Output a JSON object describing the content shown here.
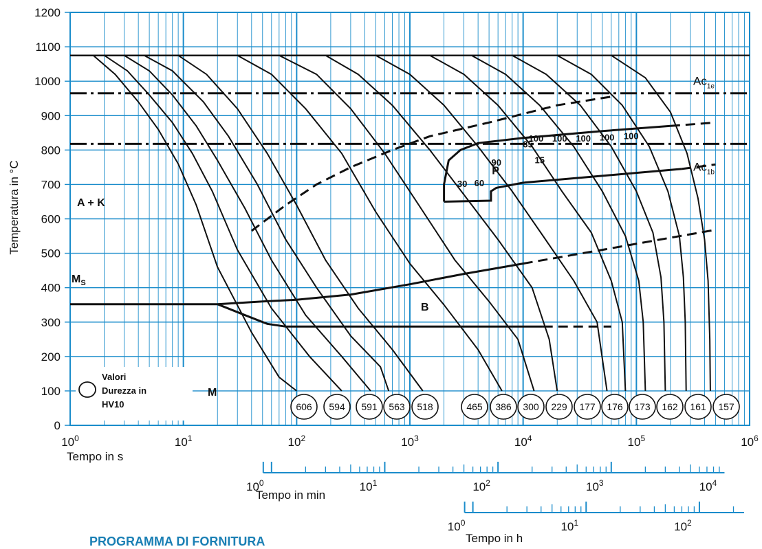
{
  "colors": {
    "grid": "#1a8ccb",
    "curve": "#111111",
    "background": "#ffffff",
    "heading": "#1a7fb4"
  },
  "footer": {
    "heading": "PROGRAMMA DI FORNITURA"
  },
  "chart_data": {
    "type": "line",
    "title": "",
    "ylabel": "Temperatura in °C",
    "ylim": [
      0,
      1200
    ],
    "yticks": [
      "0",
      "100",
      "200",
      "300",
      "400",
      "500",
      "600",
      "700",
      "800",
      "900",
      "1000",
      "1100",
      "1200"
    ],
    "xscale": "log",
    "xaxes": [
      {
        "label": "Tempo in s",
        "range_s": [
          1,
          1000000
        ],
        "ticks": [
          {
            "base": "10",
            "exp": "0"
          },
          {
            "base": "10",
            "exp": "1"
          },
          {
            "base": "10",
            "exp": "2"
          },
          {
            "base": "10",
            "exp": "3"
          },
          {
            "base": "10",
            "exp": "4"
          },
          {
            "base": "10",
            "exp": "5"
          },
          {
            "base": "10",
            "exp": "6"
          }
        ]
      },
      {
        "label": "Tempo in min",
        "ticks": [
          {
            "base": "10",
            "exp": "0"
          },
          {
            "base": "10",
            "exp": "1"
          },
          {
            "base": "10",
            "exp": "2"
          },
          {
            "base": "10",
            "exp": "3"
          },
          {
            "base": "10",
            "exp": "4"
          }
        ]
      },
      {
        "label": "Tempo in h",
        "ticks": [
          {
            "base": "10",
            "exp": "0"
          },
          {
            "base": "10",
            "exp": "1"
          },
          {
            "base": "10",
            "exp": "2"
          }
        ]
      }
    ],
    "lines": [
      {
        "label": "Ac1e",
        "label_main": "Ac",
        "label_sub": "1e",
        "temperature": 965
      },
      {
        "label": "Ac1b",
        "label_main": "Ac",
        "label_sub": "1b",
        "temperature": 818
      }
    ],
    "austenitizing_temperature": 1075,
    "regions": [
      "A + K",
      "P",
      "B",
      "M"
    ],
    "ms_label": {
      "main": "M",
      "sub": "S"
    },
    "cooling_curves": [
      {
        "hardness": "606",
        "points": [
          [
            1,
            1075
          ],
          [
            1.6,
            1075
          ],
          [
            2.5,
            1020
          ],
          [
            4,
            940
          ],
          [
            6,
            860
          ],
          [
            9,
            760
          ],
          [
            13,
            640
          ],
          [
            20,
            460
          ],
          [
            40,
            270
          ],
          [
            70,
            140
          ],
          [
            100,
            100
          ]
        ]
      },
      {
        "hardness": "594",
        "points": [
          [
            1,
            1075
          ],
          [
            2,
            1075
          ],
          [
            3.2,
            1030
          ],
          [
            5,
            960
          ],
          [
            8,
            880
          ],
          [
            12,
            790
          ],
          [
            18,
            680
          ],
          [
            30,
            510
          ],
          [
            60,
            340
          ],
          [
            130,
            200
          ],
          [
            250,
            100
          ]
        ]
      },
      {
        "hardness": "591",
        "points": [
          [
            1,
            1075
          ],
          [
            3,
            1075
          ],
          [
            5,
            1030
          ],
          [
            8,
            960
          ],
          [
            13,
            870
          ],
          [
            20,
            770
          ],
          [
            35,
            630
          ],
          [
            60,
            480
          ],
          [
            120,
            320
          ],
          [
            250,
            200
          ],
          [
            450,
            100
          ]
        ]
      },
      {
        "hardness": "563",
        "points": [
          [
            1,
            1075
          ],
          [
            4.5,
            1075
          ],
          [
            8,
            1030
          ],
          [
            15,
            940
          ],
          [
            25,
            840
          ],
          [
            45,
            700
          ],
          [
            80,
            540
          ],
          [
            150,
            400
          ],
          [
            300,
            260
          ],
          [
            550,
            170
          ],
          [
            650,
            100
          ]
        ]
      },
      {
        "hardness": "518",
        "points": [
          [
            1,
            1075
          ],
          [
            9,
            1075
          ],
          [
            16,
            1020
          ],
          [
            30,
            920
          ],
          [
            55,
            790
          ],
          [
            100,
            640
          ],
          [
            180,
            480
          ],
          [
            350,
            340
          ],
          [
            700,
            220
          ],
          [
            1300,
            100
          ]
        ]
      },
      {
        "hardness": "465",
        "points": [
          [
            1,
            1075
          ],
          [
            30,
            1075
          ],
          [
            60,
            1020
          ],
          [
            120,
            920
          ],
          [
            250,
            790
          ],
          [
            500,
            620
          ],
          [
            1000,
            470
          ],
          [
            2000,
            350
          ],
          [
            4000,
            220
          ],
          [
            6500,
            100
          ]
        ]
      },
      {
        "hardness": "386",
        "points": [
          [
            1,
            1075
          ],
          [
            70,
            1075
          ],
          [
            150,
            1020
          ],
          [
            300,
            920
          ],
          [
            600,
            790
          ],
          [
            1200,
            640
          ],
          [
            2500,
            480
          ],
          [
            5000,
            360
          ],
          [
            9000,
            250
          ],
          [
            12500,
            100
          ]
        ]
      },
      {
        "hardness": "300",
        "points": [
          [
            1,
            1075
          ],
          [
            180,
            1075
          ],
          [
            350,
            1020
          ],
          [
            700,
            930
          ],
          [
            1500,
            800
          ],
          [
            3000,
            670
          ],
          [
            6000,
            540
          ],
          [
            12000,
            400
          ],
          [
            17000,
            250
          ],
          [
            20000,
            100
          ]
        ]
      },
      {
        "hardness": "229",
        "points": [
          [
            1,
            1075
          ],
          [
            500,
            1075
          ],
          [
            1000,
            1020
          ],
          [
            2000,
            930
          ],
          [
            4000,
            810
          ],
          [
            8000,
            680
          ],
          [
            15000,
            550
          ],
          [
            28000,
            420
          ],
          [
            45000,
            300
          ],
          [
            55000,
            100
          ]
        ]
      },
      {
        "hardness": "177",
        "points": [
          [
            1,
            1075
          ],
          [
            1500,
            1075
          ],
          [
            3000,
            1020
          ],
          [
            6000,
            930
          ],
          [
            12000,
            810
          ],
          [
            22000,
            680
          ],
          [
            40000,
            560
          ],
          [
            60000,
            420
          ],
          [
            75000,
            300
          ],
          [
            80000,
            100
          ]
        ]
      },
      {
        "hardness": "176",
        "points": [
          [
            1,
            1075
          ],
          [
            3500,
            1075
          ],
          [
            7000,
            1020
          ],
          [
            14000,
            930
          ],
          [
            28000,
            810
          ],
          [
            50000,
            680
          ],
          [
            80000,
            550
          ],
          [
            105000,
            420
          ],
          [
            115000,
            300
          ],
          [
            120000,
            100
          ]
        ]
      },
      {
        "hardness": "173",
        "points": [
          [
            1,
            1075
          ],
          [
            8000,
            1075
          ],
          [
            16000,
            1020
          ],
          [
            32000,
            930
          ],
          [
            60000,
            810
          ],
          [
            100000,
            680
          ],
          [
            140000,
            560
          ],
          [
            165000,
            430
          ],
          [
            175000,
            300
          ],
          [
            180000,
            100
          ]
        ]
      },
      {
        "hardness": "162",
        "points": [
          [
            1,
            1075
          ],
          [
            20000,
            1075
          ],
          [
            40000,
            1020
          ],
          [
            75000,
            930
          ],
          [
            130000,
            810
          ],
          [
            190000,
            680
          ],
          [
            240000,
            550
          ],
          [
            260000,
            430
          ],
          [
            270000,
            300
          ],
          [
            275000,
            100
          ]
        ]
      },
      {
        "hardness": "161",
        "points": [
          [
            1,
            1075
          ],
          [
            60000,
            1075
          ],
          [
            120000,
            1010
          ],
          [
            200000,
            910
          ],
          [
            280000,
            790
          ],
          [
            350000,
            660
          ],
          [
            400000,
            540
          ],
          [
            430000,
            420
          ],
          [
            445000,
            250
          ],
          [
            450000,
            100
          ]
        ]
      },
      {
        "hardness": "157",
        "points": []
      }
    ],
    "boundaries": [
      {
        "name": "ms-start",
        "style": "solid",
        "points": [
          [
            1,
            352
          ],
          [
            20,
            352
          ]
        ]
      },
      {
        "name": "bainite-upper",
        "style": "solid",
        "points": [
          [
            20,
            352
          ],
          [
            50,
            360
          ],
          [
            100,
            365
          ],
          [
            300,
            380
          ],
          [
            1000,
            410
          ],
          [
            3000,
            440
          ],
          [
            10000,
            470
          ]
        ]
      },
      {
        "name": "bainite-upper-dashed",
        "style": "dashed",
        "points": [
          [
            10000,
            470
          ],
          [
            50000,
            510
          ],
          [
            200000,
            545
          ],
          [
            500000,
            568
          ]
        ]
      },
      {
        "name": "martensite-finish",
        "style": "solid",
        "points": [
          [
            20,
            352
          ],
          [
            35,
            320
          ],
          [
            55,
            295
          ],
          [
            80,
            287
          ],
          [
            200,
            287
          ],
          [
            1000,
            287
          ],
          [
            10000,
            287
          ],
          [
            15000,
            287
          ]
        ]
      },
      {
        "name": "martensite-finish-dashed",
        "style": "dashed",
        "points": [
          [
            15000,
            287
          ],
          [
            60000,
            287
          ]
        ]
      },
      {
        "name": "ferrite-carbide-start",
        "style": "dashed",
        "points": [
          [
            40,
            565
          ],
          [
            80,
            640
          ],
          [
            150,
            700
          ],
          [
            300,
            750
          ],
          [
            700,
            800
          ],
          [
            1500,
            840
          ],
          [
            5000,
            880
          ],
          [
            20000,
            930
          ],
          [
            60000,
            955
          ]
        ]
      },
      {
        "name": "pearlite-start",
        "style": "solid",
        "points": [
          [
            2000,
            650
          ],
          [
            2000,
            700
          ],
          [
            2200,
            770
          ],
          [
            2800,
            800
          ],
          [
            4000,
            820
          ],
          [
            10000,
            835
          ],
          [
            50000,
            855
          ],
          [
            200000,
            870
          ]
        ]
      },
      {
        "name": "pearlite-start-dashed",
        "style": "dashed",
        "points": [
          [
            200000,
            870
          ],
          [
            500000,
            880
          ]
        ]
      },
      {
        "name": "pearlite-finish",
        "style": "solid",
        "points": [
          [
            2000,
            650
          ],
          [
            5200,
            653
          ],
          [
            5200,
            680
          ],
          [
            5800,
            690
          ],
          [
            10000,
            705
          ],
          [
            50000,
            725
          ],
          [
            250000,
            745
          ]
        ]
      },
      {
        "name": "pearlite-finish-dashed",
        "style": "dashed",
        "points": [
          [
            250000,
            745
          ],
          [
            500000,
            758
          ]
        ]
      }
    ],
    "phase_percentages": [
      {
        "text": "30",
        "t": 2900,
        "T": 693
      },
      {
        "text": "60",
        "t": 4100,
        "T": 695
      },
      {
        "text": "90",
        "t": 5800,
        "T": 755
      },
      {
        "text": "85",
        "t": 11000,
        "T": 808
      },
      {
        "text": "100",
        "t": 13000,
        "T": 825
      },
      {
        "text": "100",
        "t": 21000,
        "T": 825
      },
      {
        "text": "100",
        "t": 34000,
        "T": 825
      },
      {
        "text": "100",
        "t": 55000,
        "T": 828
      },
      {
        "text": "100",
        "t": 90000,
        "T": 832
      },
      {
        "text": "15",
        "t": 14000,
        "T": 762
      }
    ],
    "legend": {
      "lines": [
        "Valori",
        "Durezza in",
        "HV10"
      ]
    }
  }
}
